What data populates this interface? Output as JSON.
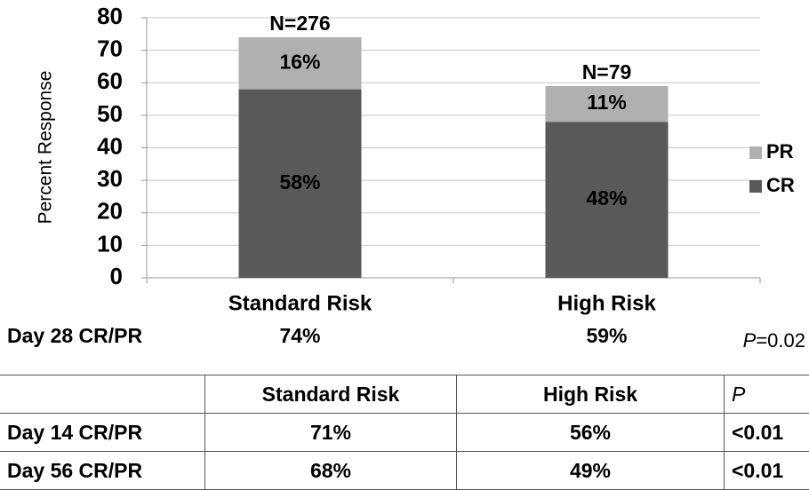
{
  "chart_data": {
    "type": "stacked_bar",
    "ylabel": "Percent Response",
    "categories": [
      "Standard Risk",
      "High Risk"
    ],
    "series": [
      {
        "name": "CR",
        "color": "#595959",
        "values": [
          58,
          48
        ],
        "value_labels": [
          "58%",
          "48%"
        ]
      },
      {
        "name": "PR",
        "color": "#b0b0b0",
        "values": [
          16,
          11
        ],
        "value_labels": [
          "16%",
          "11%"
        ]
      }
    ],
    "bar_labels": [
      "N=276",
      "N=79"
    ],
    "ylim": [
      0,
      80
    ],
    "yticks": [
      0,
      10,
      20,
      30,
      40,
      50,
      60,
      70,
      80
    ],
    "grid": true,
    "legend": "right"
  },
  "summary": {
    "label": "Day 28 CR/PR",
    "values": [
      "74%",
      "59%"
    ],
    "p_label": "P",
    "p_value": "=0.02"
  },
  "table": {
    "header": [
      "Standard Risk",
      "High Risk",
      "P"
    ],
    "rows": [
      [
        "Day 14 CR/PR",
        "71%",
        "56%",
        "<0.01"
      ],
      [
        "Day 56 CR/PR",
        "68%",
        "49%",
        "<0.01"
      ]
    ]
  }
}
